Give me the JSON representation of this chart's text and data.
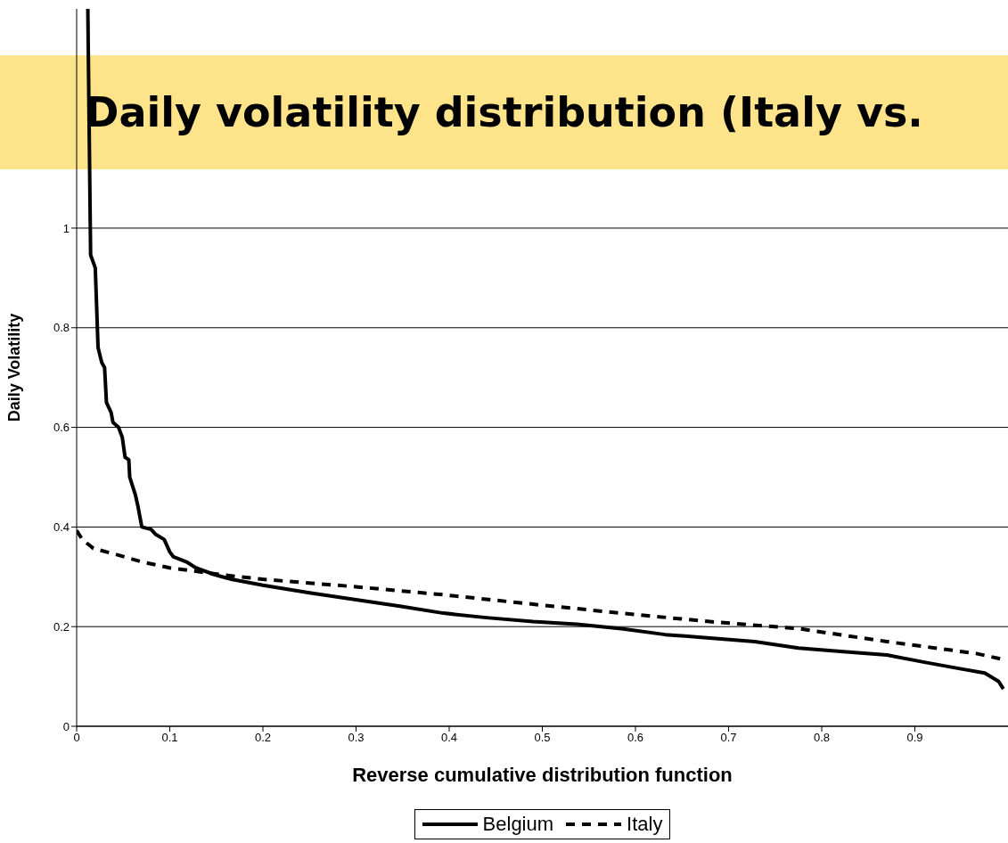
{
  "chart_data": {
    "type": "line",
    "title": "Daily volatility distribution (Italy vs.",
    "xlabel": "Reverse cumulative distribution function",
    "ylabel": "Daily Volatility",
    "xlim": [
      0,
      1
    ],
    "xticks": [
      0,
      0.1,
      0.2,
      0.3,
      0.4,
      0.5,
      0.6,
      0.7,
      0.8,
      0.9
    ],
    "ylim": [
      0,
      1.44
    ],
    "yticks": [
      0,
      0.2,
      0.4,
      0.6,
      0.8,
      1
    ],
    "grid": "y",
    "legend": "bottom",
    "marker": "none",
    "series": [
      {
        "name": "Belgium",
        "color": "#000000",
        "line_style": "solid",
        "x": [
          0.012,
          0.015,
          0.02,
          0.023,
          0.027,
          0.03,
          0.032,
          0.037,
          0.039,
          0.045,
          0.049,
          0.052,
          0.056,
          0.057,
          0.063,
          0.066,
          0.07,
          0.08,
          0.085,
          0.094,
          0.1,
          0.104,
          0.118,
          0.128,
          0.147,
          0.166,
          0.2,
          0.25,
          0.3,
          0.347,
          0.394,
          0.44,
          0.49,
          0.537,
          0.585,
          0.632,
          0.68,
          0.728,
          0.775,
          0.823,
          0.87,
          0.909,
          0.947,
          0.975,
          0.99,
          0.995
        ],
        "values": [
          1.44,
          0.946,
          0.92,
          0.76,
          0.73,
          0.72,
          0.65,
          0.63,
          0.61,
          0.6,
          0.58,
          0.54,
          0.535,
          0.5,
          0.465,
          0.44,
          0.4,
          0.395,
          0.385,
          0.375,
          0.35,
          0.34,
          0.33,
          0.318,
          0.305,
          0.295,
          0.283,
          0.268,
          0.254,
          0.241,
          0.227,
          0.218,
          0.21,
          0.205,
          0.196,
          0.184,
          0.177,
          0.17,
          0.157,
          0.15,
          0.143,
          0.129,
          0.116,
          0.107,
          0.09,
          0.075
        ]
      },
      {
        "name": "Italy",
        "color": "#000000",
        "line_style": "dashed",
        "x": [
          0,
          0.006,
          0.018,
          0.042,
          0.07,
          0.1,
          0.156,
          0.2,
          0.3,
          0.394,
          0.49,
          0.585,
          0.68,
          0.775,
          0.87,
          0.966,
          0.995
        ],
        "values": [
          0.393,
          0.375,
          0.357,
          0.345,
          0.33,
          0.318,
          0.304,
          0.295,
          0.28,
          0.264,
          0.245,
          0.227,
          0.21,
          0.196,
          0.17,
          0.146,
          0.134
        ]
      }
    ]
  }
}
